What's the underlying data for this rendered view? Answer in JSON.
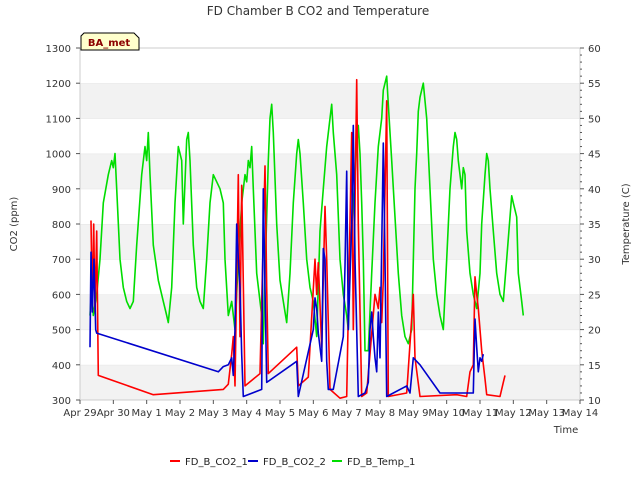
{
  "chart_data": {
    "type": "line",
    "title": "FD Chamber B CO2 and Temperature",
    "xlabel": "Time",
    "ylabel": "CO2 (ppm)",
    "y2label": "Temperature (C)",
    "badge": "BA_met",
    "grid": "horizontal bands",
    "legend_position": "bottom-center",
    "x_ticks": [
      "Apr 29",
      "Apr 30",
      "May 1",
      "May 2",
      "May 3",
      "May 4",
      "May 5",
      "May 6",
      "May 7",
      "May 8",
      "May 9",
      "May 10",
      "May 11",
      "May 12",
      "May 13",
      "May 14"
    ],
    "ylim": [
      300,
      1300
    ],
    "y_ticks": [
      300,
      400,
      500,
      600,
      700,
      800,
      900,
      1000,
      1100,
      1200,
      1300
    ],
    "y2lim": [
      10,
      60
    ],
    "y2_ticks": [
      10,
      15,
      20,
      25,
      30,
      35,
      40,
      45,
      50,
      55,
      60
    ],
    "series": [
      {
        "name": "FD_B_CO2_1",
        "axis": "left",
        "color": "#ff0000",
        "points": [
          [
            0.33,
            810
          ],
          [
            0.37,
            560
          ],
          [
            0.41,
            800
          ],
          [
            0.45,
            550
          ],
          [
            0.5,
            780
          ],
          [
            0.55,
            370
          ],
          [
            2.2,
            315
          ],
          [
            4.3,
            330
          ],
          [
            4.45,
            345
          ],
          [
            4.55,
            430
          ],
          [
            4.6,
            480
          ],
          [
            4.65,
            340
          ],
          [
            4.75,
            940
          ],
          [
            4.8,
            480
          ],
          [
            4.85,
            910
          ],
          [
            4.95,
            340
          ],
          [
            5.4,
            375
          ],
          [
            5.55,
            965
          ],
          [
            5.6,
            620
          ],
          [
            5.65,
            375
          ],
          [
            6.5,
            450
          ],
          [
            6.55,
            340
          ],
          [
            6.85,
            365
          ],
          [
            7.05,
            700
          ],
          [
            7.1,
            600
          ],
          [
            7.15,
            690
          ],
          [
            7.25,
            450
          ],
          [
            7.35,
            850
          ],
          [
            7.4,
            700
          ],
          [
            7.5,
            330
          ],
          [
            7.8,
            305
          ],
          [
            8.0,
            310
          ],
          [
            8.15,
            1060
          ],
          [
            8.2,
            500
          ],
          [
            8.3,
            1210
          ],
          [
            8.35,
            800
          ],
          [
            8.45,
            310
          ],
          [
            8.6,
            320
          ],
          [
            8.85,
            600
          ],
          [
            8.95,
            560
          ],
          [
            9.0,
            620
          ],
          [
            9.05,
            520
          ],
          [
            9.1,
            640
          ],
          [
            9.2,
            1150
          ],
          [
            9.25,
            310
          ],
          [
            9.8,
            320
          ],
          [
            10.0,
            600
          ],
          [
            10.05,
            420
          ],
          [
            10.2,
            310
          ],
          [
            11.3,
            315
          ],
          [
            11.6,
            310
          ],
          [
            11.7,
            380
          ],
          [
            11.8,
            400
          ],
          [
            11.85,
            650
          ],
          [
            11.9,
            600
          ],
          [
            11.95,
            560
          ],
          [
            12.05,
            440
          ],
          [
            12.15,
            360
          ],
          [
            12.2,
            315
          ],
          [
            12.6,
            310
          ],
          [
            12.7,
            350
          ],
          [
            12.75,
            370
          ]
        ]
      },
      {
        "name": "FD_B_CO2_2",
        "axis": "left",
        "color": "#0000cc",
        "points": [
          [
            0.3,
            450
          ],
          [
            0.33,
            720
          ],
          [
            0.37,
            550
          ],
          [
            0.42,
            700
          ],
          [
            0.47,
            500
          ],
          [
            0.5,
            490
          ],
          [
            4.15,
            380
          ],
          [
            4.3,
            395
          ],
          [
            4.45,
            400
          ],
          [
            4.55,
            420
          ],
          [
            4.6,
            370
          ],
          [
            4.65,
            500
          ],
          [
            4.7,
            800
          ],
          [
            4.75,
            700
          ],
          [
            4.8,
            620
          ],
          [
            4.85,
            430
          ],
          [
            4.9,
            310
          ],
          [
            5.45,
            330
          ],
          [
            5.5,
            900
          ],
          [
            5.55,
            620
          ],
          [
            5.6,
            350
          ],
          [
            6.5,
            410
          ],
          [
            6.55,
            310
          ],
          [
            7.0,
            500
          ],
          [
            7.05,
            590
          ],
          [
            7.1,
            560
          ],
          [
            7.15,
            490
          ],
          [
            7.25,
            410
          ],
          [
            7.3,
            730
          ],
          [
            7.35,
            700
          ],
          [
            7.4,
            410
          ],
          [
            7.45,
            330
          ],
          [
            7.6,
            330
          ],
          [
            7.9,
            480
          ],
          [
            7.95,
            680
          ],
          [
            8.0,
            950
          ],
          [
            8.05,
            500
          ],
          [
            8.15,
            800
          ],
          [
            8.2,
            1080
          ],
          [
            8.25,
            700
          ],
          [
            8.35,
            310
          ],
          [
            8.55,
            320
          ],
          [
            8.65,
            350
          ],
          [
            8.7,
            500
          ],
          [
            8.75,
            550
          ],
          [
            8.8,
            480
          ],
          [
            8.85,
            420
          ],
          [
            8.9,
            380
          ],
          [
            8.95,
            550
          ],
          [
            9.0,
            420
          ],
          [
            9.1,
            1030
          ],
          [
            9.15,
            700
          ],
          [
            9.2,
            310
          ],
          [
            9.8,
            340
          ],
          [
            9.9,
            320
          ],
          [
            10.0,
            420
          ],
          [
            10.2,
            400
          ],
          [
            10.8,
            320
          ],
          [
            11.8,
            320
          ],
          [
            11.85,
            530
          ],
          [
            11.9,
            450
          ],
          [
            11.95,
            380
          ],
          [
            12.0,
            420
          ],
          [
            12.05,
            410
          ],
          [
            12.1,
            430
          ]
        ]
      },
      {
        "name": "FD_B_Temp_1",
        "axis": "right",
        "color": "#00dd00",
        "points": [
          [
            0.3,
            22
          ],
          [
            0.35,
            26
          ],
          [
            0.4,
            22
          ],
          [
            0.5,
            25
          ],
          [
            0.6,
            30
          ],
          [
            0.7,
            38
          ],
          [
            0.85,
            42
          ],
          [
            0.95,
            44
          ],
          [
            1.0,
            43
          ],
          [
            1.05,
            45
          ],
          [
            1.1,
            40
          ],
          [
            1.2,
            30
          ],
          [
            1.3,
            26
          ],
          [
            1.4,
            24
          ],
          [
            1.5,
            23
          ],
          [
            1.6,
            24
          ],
          [
            1.7,
            32
          ],
          [
            1.85,
            42
          ],
          [
            1.95,
            46
          ],
          [
            2.0,
            44
          ],
          [
            2.05,
            48
          ],
          [
            2.1,
            42
          ],
          [
            2.2,
            32
          ],
          [
            2.35,
            27
          ],
          [
            2.5,
            24
          ],
          [
            2.6,
            22
          ],
          [
            2.65,
            21
          ],
          [
            2.75,
            26
          ],
          [
            2.85,
            38
          ],
          [
            2.95,
            46
          ],
          [
            3.05,
            44
          ],
          [
            3.1,
            35
          ],
          [
            3.2,
            47
          ],
          [
            3.25,
            48
          ],
          [
            3.3,
            44
          ],
          [
            3.4,
            32
          ],
          [
            3.5,
            26
          ],
          [
            3.6,
            24
          ],
          [
            3.7,
            23
          ],
          [
            3.8,
            30
          ],
          [
            3.9,
            38
          ],
          [
            4.0,
            42
          ],
          [
            4.1,
            41
          ],
          [
            4.2,
            40
          ],
          [
            4.3,
            38
          ],
          [
            4.35,
            30
          ],
          [
            4.45,
            22
          ],
          [
            4.55,
            24
          ],
          [
            4.65,
            20
          ],
          [
            4.75,
            30
          ],
          [
            4.85,
            38
          ],
          [
            4.95,
            42
          ],
          [
            5.0,
            41
          ],
          [
            5.05,
            44
          ],
          [
            5.1,
            43
          ],
          [
            5.15,
            46
          ],
          [
            5.2,
            40
          ],
          [
            5.3,
            28
          ],
          [
            5.45,
            22
          ],
          [
            5.5,
            18
          ],
          [
            5.55,
            28
          ],
          [
            5.6,
            36
          ],
          [
            5.65,
            44
          ],
          [
            5.7,
            50
          ],
          [
            5.75,
            52
          ],
          [
            5.8,
            48
          ],
          [
            5.9,
            35
          ],
          [
            6.0,
            27
          ],
          [
            6.1,
            24
          ],
          [
            6.2,
            21
          ],
          [
            6.3,
            28
          ],
          [
            6.4,
            38
          ],
          [
            6.5,
            45
          ],
          [
            6.55,
            47
          ],
          [
            6.6,
            45
          ],
          [
            6.7,
            38
          ],
          [
            6.8,
            30
          ],
          [
            6.9,
            26
          ],
          [
            7.0,
            24
          ],
          [
            7.1,
            19
          ],
          [
            7.2,
            34
          ],
          [
            7.3,
            40
          ],
          [
            7.4,
            46
          ],
          [
            7.5,
            50
          ],
          [
            7.55,
            52
          ],
          [
            7.6,
            48
          ],
          [
            7.7,
            42
          ],
          [
            7.8,
            30
          ],
          [
            7.9,
            25
          ],
          [
            8.0,
            22
          ],
          [
            8.05,
            20
          ],
          [
            8.1,
            30
          ],
          [
            8.2,
            38
          ],
          [
            8.3,
            46
          ],
          [
            8.35,
            49
          ],
          [
            8.4,
            45
          ],
          [
            8.45,
            38
          ],
          [
            8.5,
            30
          ],
          [
            8.55,
            17
          ],
          [
            8.65,
            17
          ],
          [
            8.75,
            28
          ],
          [
            8.85,
            38
          ],
          [
            8.95,
            46
          ],
          [
            9.05,
            50
          ],
          [
            9.1,
            54
          ],
          [
            9.2,
            56
          ],
          [
            9.25,
            52
          ],
          [
            9.35,
            44
          ],
          [
            9.45,
            36
          ],
          [
            9.55,
            28
          ],
          [
            9.65,
            22
          ],
          [
            9.75,
            19
          ],
          [
            9.85,
            18
          ],
          [
            9.95,
            20
          ],
          [
            10.05,
            40
          ],
          [
            10.1,
            45
          ],
          [
            10.15,
            51
          ],
          [
            10.2,
            53
          ],
          [
            10.3,
            55
          ],
          [
            10.4,
            50
          ],
          [
            10.5,
            40
          ],
          [
            10.6,
            30
          ],
          [
            10.7,
            25
          ],
          [
            10.8,
            22
          ],
          [
            10.9,
            20
          ],
          [
            11.0,
            30
          ],
          [
            11.1,
            40
          ],
          [
            11.2,
            46
          ],
          [
            11.25,
            48
          ],
          [
            11.3,
            47
          ],
          [
            11.35,
            44
          ],
          [
            11.45,
            40
          ],
          [
            11.5,
            43
          ],
          [
            11.55,
            42
          ],
          [
            11.6,
            34
          ],
          [
            11.7,
            28
          ],
          [
            11.8,
            25
          ],
          [
            11.9,
            23
          ],
          [
            12.0,
            28
          ],
          [
            12.05,
            35
          ],
          [
            12.15,
            42
          ],
          [
            12.2,
            45
          ],
          [
            12.25,
            44
          ],
          [
            12.3,
            40
          ],
          [
            12.4,
            34
          ],
          [
            12.5,
            28
          ],
          [
            12.6,
            25
          ],
          [
            12.7,
            24
          ],
          [
            12.8,
            30
          ],
          [
            12.9,
            36
          ],
          [
            12.95,
            39
          ],
          [
            13.0,
            38
          ],
          [
            13.05,
            37
          ],
          [
            13.1,
            36
          ],
          [
            13.15,
            28
          ],
          [
            13.2,
            26
          ],
          [
            13.25,
            24
          ],
          [
            13.3,
            22
          ]
        ]
      }
    ]
  }
}
